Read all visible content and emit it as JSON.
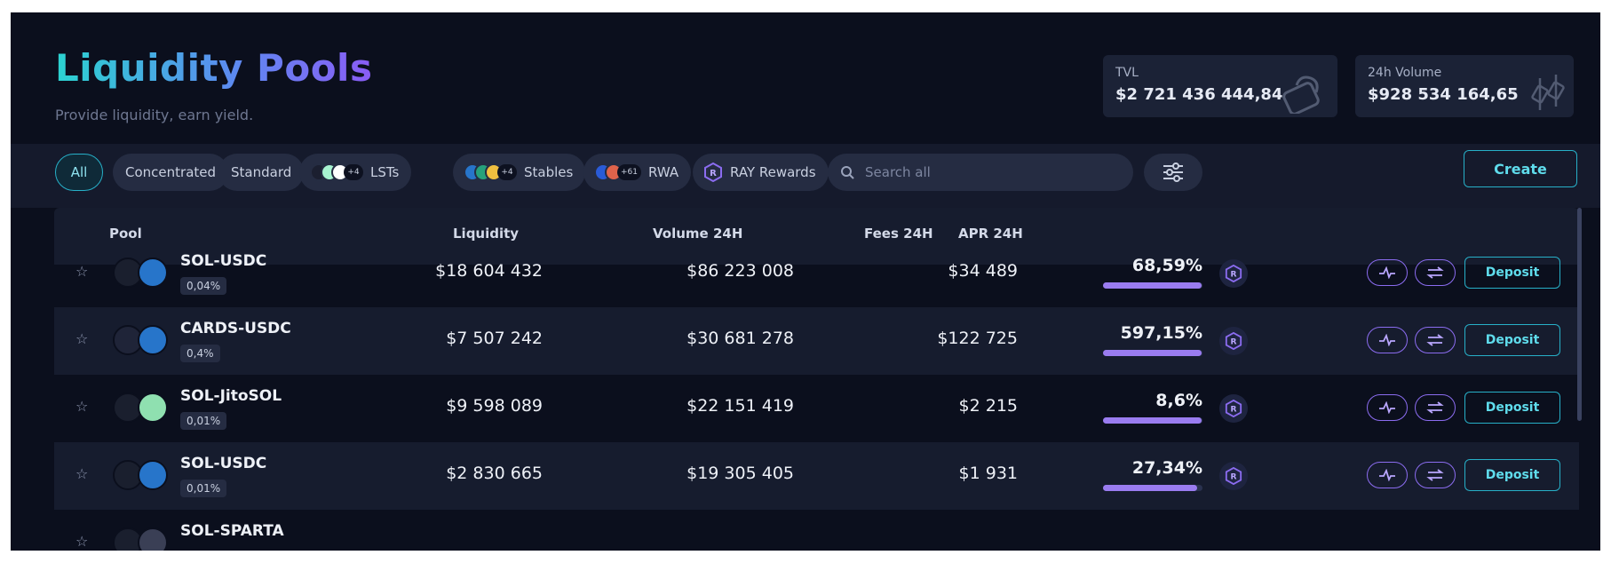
{
  "header": {
    "title": "Liquidity Pools",
    "subtitle": "Provide liquidity, earn yield.",
    "stats": {
      "tvl_label": "TVL",
      "tvl_value": "$2 721 436 444,84",
      "volume_label": "24h Volume",
      "volume_value": "$928 534 164,65"
    }
  },
  "filters": {
    "all": "All",
    "concentrated": "Concentrated",
    "standard": "Standard",
    "lsts": {
      "label": "LSTs",
      "more": "+4"
    },
    "stables": {
      "label": "Stables",
      "more": "+4"
    },
    "rwa": {
      "label": "RWA",
      "more": "+61"
    },
    "ray_rewards": "RAY Rewards",
    "search_placeholder": "Search all",
    "create": "Create"
  },
  "table": {
    "columns": {
      "pool": "Pool",
      "liquidity": "Liquidity",
      "volume": "Volume 24H",
      "fees": "Fees 24H",
      "apr": "APR 24H"
    },
    "deposit_label": "Deposit",
    "rows": [
      {
        "pair": "SOL-USDC",
        "fee_tier": "0,04%",
        "liquidity": "$18 604 432",
        "volume": "$86 223 008",
        "fees": "$34 489",
        "apr": "68,59%",
        "apr_bar": 0.99
      },
      {
        "pair": "CARDS-USDC",
        "fee_tier": "0,4%",
        "liquidity": "$7 507 242",
        "volume": "$30 681 278",
        "fees": "$122 725",
        "apr": "597,15%",
        "apr_bar": 0.99
      },
      {
        "pair": "SOL-JitoSOL",
        "fee_tier": "0,01%",
        "liquidity": "$9 598 089",
        "volume": "$22 151 419",
        "fees": "$2 215",
        "apr": "8,6%",
        "apr_bar": 0.99
      },
      {
        "pair": "SOL-USDC",
        "fee_tier": "0,01%",
        "liquidity": "$2 830 665",
        "volume": "$19 305 405",
        "fees": "$1 931",
        "apr": "27,34%",
        "apr_bar": 0.95
      },
      {
        "pair": "SOL-SPARTA"
      }
    ]
  },
  "colors": {
    "accent_cyan": "#27b0c8",
    "accent_purple": "#8b6cf0",
    "apr_bar": "#9a7cf0",
    "background": "#0b0f1d"
  }
}
